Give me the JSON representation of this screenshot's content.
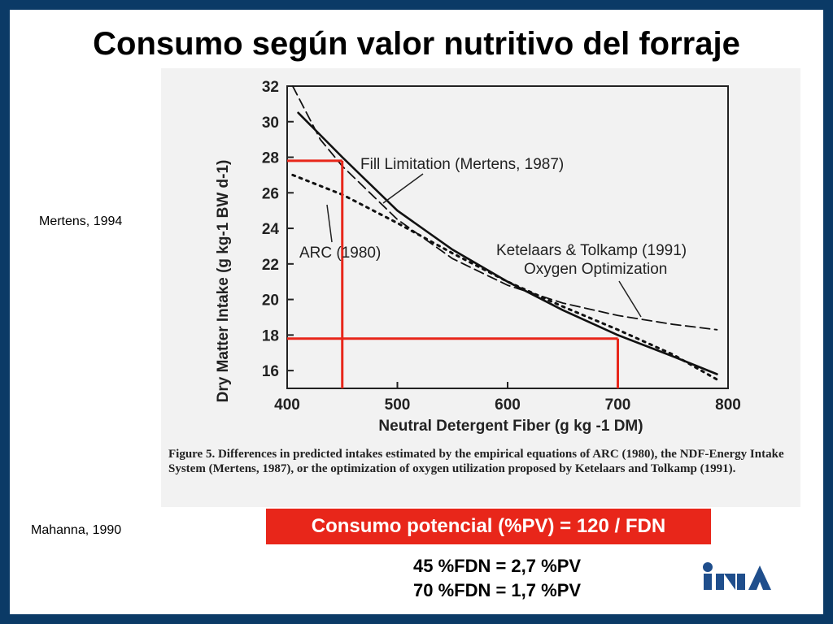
{
  "slide": {
    "title": "Consumo según valor nutritivo del forraje",
    "ref_top": "Mertens, 1994",
    "ref_bottom": "Mahanna, 1990",
    "formula": "Consumo potencial (%PV) = 120 / FDN",
    "examples": [
      "45 %FDN = 2,7 %PV",
      "70 %FDN = 1,7 %PV"
    ],
    "logo_text": "INIA",
    "caption": "Figure 5. Differences in predicted intakes estimated by the empirical equations of ARC (1980), the NDF-Energy Intake System (Mertens, 1987), or the optimization of oxygen utilization proposed by Ketelaars and Tolkamp (1991).",
    "colors": {
      "frame": "#0b3a66",
      "accent": "#e8261a",
      "logo": "#1f4e8c"
    }
  },
  "chart_data": {
    "type": "line",
    "xlabel": "Neutral Detergent Fiber (g kg -1 DM)",
    "ylabel": "Dry Matter Intake (g kg-1 BW d-1)",
    "xlim": [
      400,
      800
    ],
    "ylim": [
      15,
      32
    ],
    "xticks": [
      400,
      500,
      600,
      700,
      800
    ],
    "yticks": [
      16,
      18,
      20,
      22,
      24,
      26,
      28,
      30,
      32
    ],
    "grid": false,
    "series": [
      {
        "name": "Fill Limitation (Mertens, 1987)",
        "style": "solid",
        "x": [
          410,
          450,
          500,
          550,
          600,
          650,
          700,
          750,
          790
        ],
        "y": [
          30.5,
          28,
          25,
          22.8,
          21,
          19.4,
          18,
          16.8,
          15.8
        ]
      },
      {
        "name": "ARC (1980)",
        "style": "dotted",
        "x": [
          405,
          450,
          500,
          550,
          600,
          650,
          700,
          750,
          790
        ],
        "y": [
          27,
          25.9,
          24.3,
          22.6,
          21,
          19.6,
          18.3,
          16.9,
          15.5
        ]
      },
      {
        "name": "Ketelaars & Tolkamp (1991) Oxygen Optimization",
        "style": "dashed",
        "x": [
          405,
          430,
          450,
          500,
          550,
          600,
          650,
          700,
          750,
          790
        ],
        "y": [
          32,
          29,
          27.5,
          24.5,
          22.3,
          20.8,
          19.8,
          19.1,
          18.6,
          18.3
        ]
      }
    ],
    "annotations": [
      {
        "text": "Fill Limitation (Mertens, 1987)"
      },
      {
        "text": "ARC (1980)"
      },
      {
        "text": "Ketelaars & Tolkamp (1991)"
      },
      {
        "text": "Oxygen Optimization"
      }
    ],
    "highlight_points": [
      {
        "x": 450,
        "y": 27.8
      },
      {
        "x": 700,
        "y": 17.8
      }
    ]
  }
}
